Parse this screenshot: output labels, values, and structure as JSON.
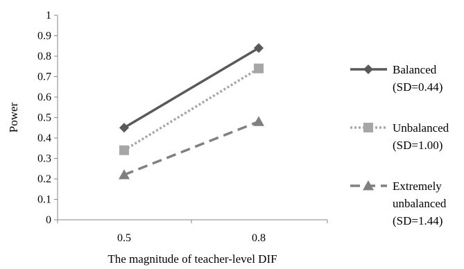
{
  "chart_data": {
    "type": "line",
    "title": "",
    "xlabel": "The magnitude of teacher-level DIF",
    "ylabel": "Power",
    "categories": [
      "0.5",
      "0.8"
    ],
    "ylim": [
      0,
      1
    ],
    "yticks": [
      "0",
      "0.1",
      "0.2",
      "0.3",
      "0.4",
      "0.5",
      "0.6",
      "0.7",
      "0.8",
      "0.9",
      "1"
    ],
    "grid": false,
    "legend_position": "right",
    "series": [
      {
        "name_lines": [
          "Balanced",
          "(SD=0.44)"
        ],
        "values": [
          0.45,
          0.84
        ],
        "color": "#595959",
        "line_style": "solid",
        "marker": "diamond"
      },
      {
        "name_lines": [
          "Unbalanced",
          "(SD=1.00)"
        ],
        "values": [
          0.34,
          0.74
        ],
        "color": "#a6a6a6",
        "line_style": "dotted",
        "marker": "square"
      },
      {
        "name_lines": [
          "Extremely",
          "unbalanced",
          "(SD=1.44)"
        ],
        "values": [
          0.22,
          0.48
        ],
        "color": "#808080",
        "line_style": "dashed",
        "marker": "triangle"
      }
    ]
  }
}
